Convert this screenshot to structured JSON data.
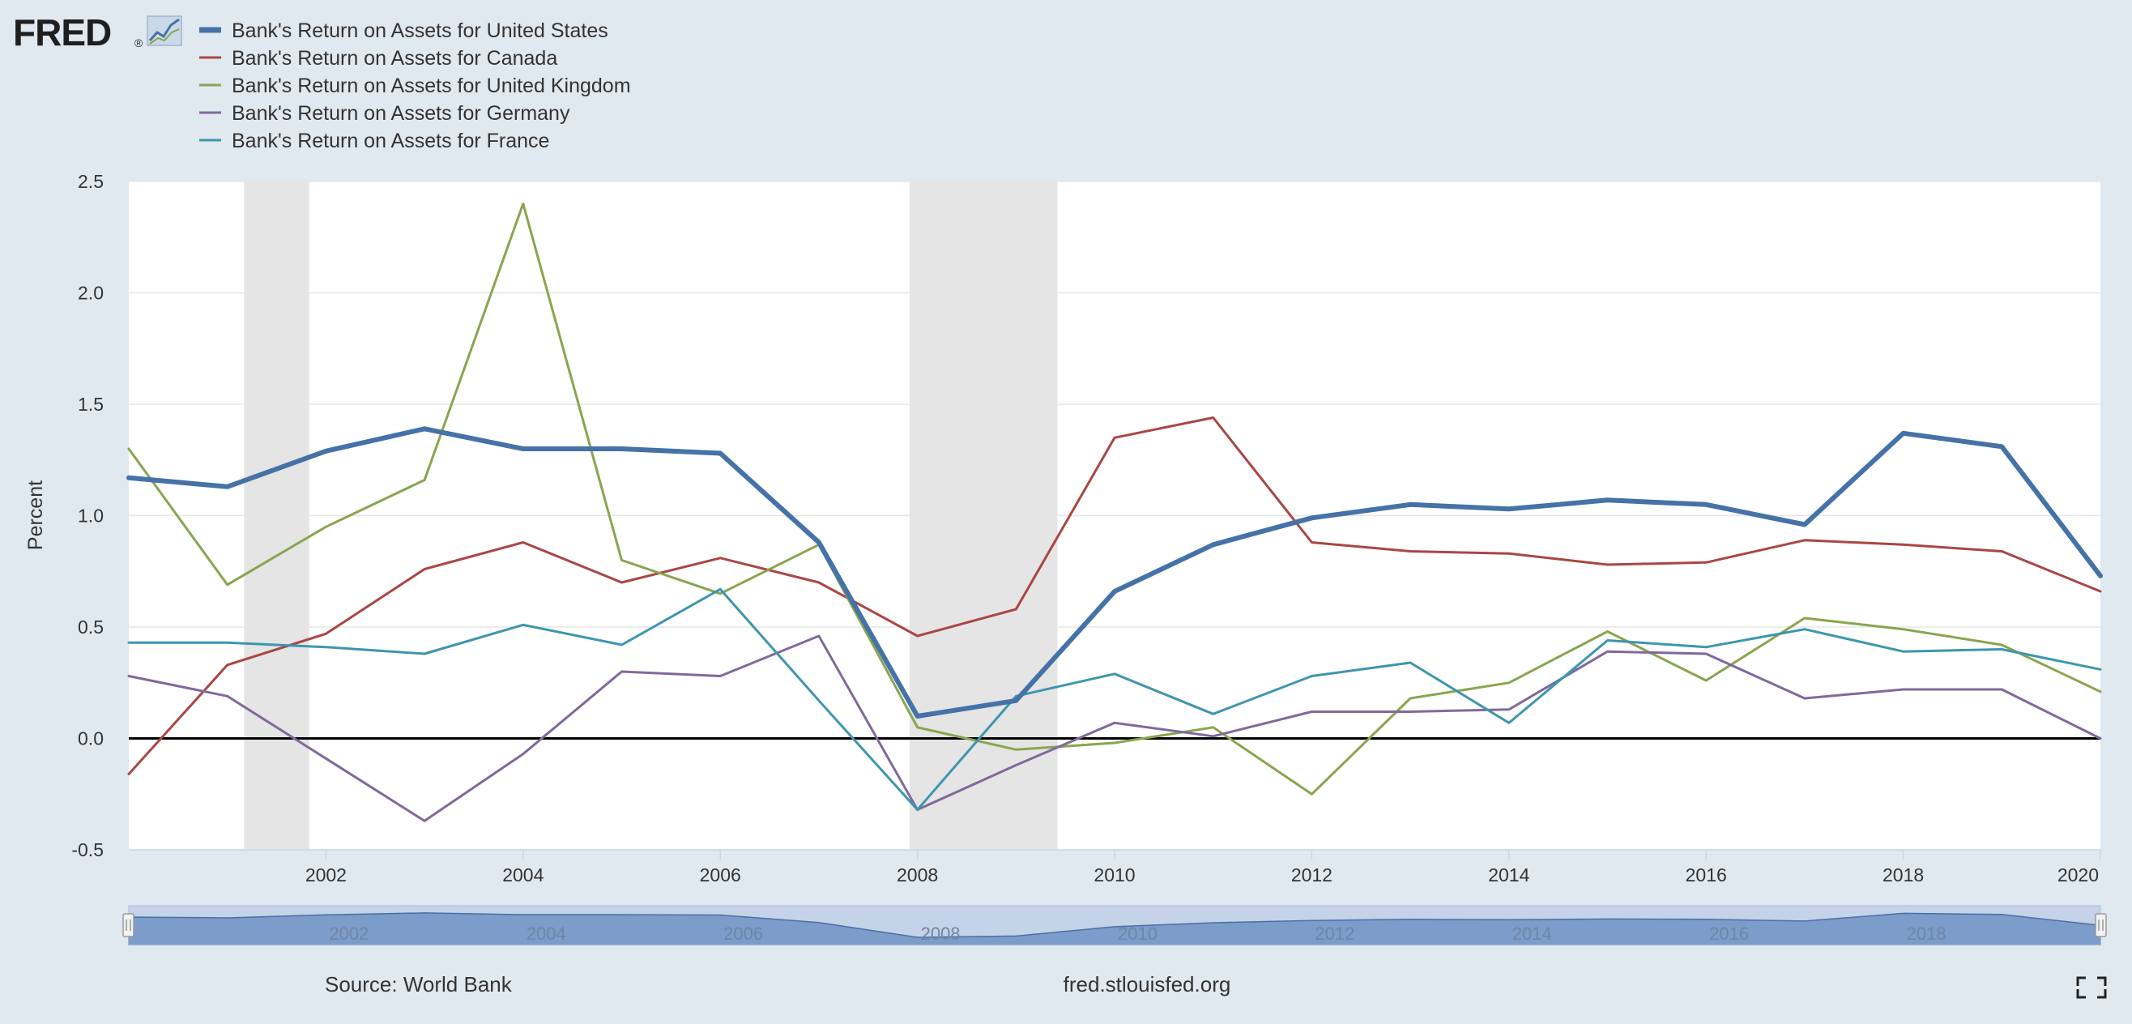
{
  "header": {
    "logo_text": "FRED",
    "logo_mark": "®",
    "logo_icon": "trend-chart-icon"
  },
  "footer": {
    "source": "Source: World Bank",
    "site": "fred.stlouisfed.org",
    "fullscreen_icon": "fullscreen-icon"
  },
  "colors": {
    "background": "#e1e9f0",
    "plot_background": "#ffffff",
    "recession": "#e5e5e5",
    "zero_line": "#000000"
  },
  "chart_data": {
    "type": "line",
    "title": "",
    "xlabel": "",
    "ylabel": "Percent",
    "xlim": [
      2000,
      2020
    ],
    "ylim": [
      -0.5,
      2.5
    ],
    "yticks": [
      -0.5,
      0.0,
      0.5,
      1.0,
      1.5,
      2.0,
      2.5
    ],
    "ytick_labels": [
      "-0.5",
      "0.0",
      "0.5",
      "1.0",
      "1.5",
      "2.0",
      "2.5"
    ],
    "xticks": [
      2002,
      2004,
      2006,
      2008,
      2010,
      2012,
      2014,
      2016,
      2018,
      2020
    ],
    "xtick_labels": [
      "2002",
      "2004",
      "2006",
      "2008",
      "2010",
      "2012",
      "2014",
      "2016",
      "2018",
      "2020"
    ],
    "grid": true,
    "legend_position": "top-left",
    "recessions": [
      {
        "start": 2001.17,
        "end": 2001.83
      },
      {
        "start": 2007.92,
        "end": 2009.42
      }
    ],
    "x": [
      2000,
      2001,
      2002,
      2003,
      2004,
      2005,
      2006,
      2007,
      2008,
      2009,
      2010,
      2011,
      2012,
      2013,
      2014,
      2015,
      2016,
      2017,
      2018,
      2019,
      2020
    ],
    "series": [
      {
        "name": "Bank's Return on Assets for United States",
        "color": "#4572a7",
        "width": 6,
        "values": [
          1.17,
          1.13,
          1.29,
          1.39,
          1.3,
          1.3,
          1.28,
          0.88,
          0.1,
          0.17,
          0.66,
          0.87,
          0.99,
          1.05,
          1.03,
          1.07,
          1.05,
          0.96,
          1.37,
          1.31,
          0.73
        ]
      },
      {
        "name": "Bank's Return on Assets for Canada",
        "color": "#aa4643",
        "width": 3,
        "values": [
          -0.16,
          0.33,
          0.47,
          0.76,
          0.88,
          0.7,
          0.81,
          0.7,
          0.46,
          0.58,
          1.35,
          1.44,
          0.88,
          0.84,
          0.83,
          0.78,
          0.79,
          0.89,
          0.87,
          0.84,
          0.66
        ]
      },
      {
        "name": "Bank's Return on Assets for United Kingdom",
        "color": "#89a54e",
        "width": 3,
        "values": [
          1.3,
          0.69,
          0.95,
          1.16,
          2.4,
          0.8,
          0.65,
          0.87,
          0.05,
          -0.05,
          -0.02,
          0.05,
          -0.25,
          0.18,
          0.25,
          0.48,
          0.26,
          0.54,
          0.49,
          0.42,
          0.21
        ]
      },
      {
        "name": "Bank's Return on Assets for Germany",
        "color": "#80699b",
        "width": 3,
        "values": [
          0.28,
          0.19,
          -0.09,
          -0.37,
          -0.07,
          0.3,
          0.28,
          0.46,
          -0.32,
          -0.12,
          0.07,
          0.01,
          0.12,
          0.12,
          0.13,
          0.39,
          0.38,
          0.18,
          0.22,
          0.22,
          0.0
        ]
      },
      {
        "name": "Bank's Return on Assets for France",
        "color": "#3d96ae",
        "width": 3,
        "values": [
          0.43,
          0.43,
          0.41,
          0.38,
          0.51,
          0.42,
          0.67,
          0.17,
          -0.32,
          0.19,
          0.29,
          0.11,
          0.28,
          0.34,
          0.07,
          0.44,
          0.41,
          0.49,
          0.39,
          0.4,
          0.31
        ]
      }
    ],
    "navigator": {
      "labels": [
        "2002",
        "2004",
        "2006",
        "2008",
        "2010",
        "2012",
        "2014",
        "2016",
        "2018"
      ]
    }
  }
}
